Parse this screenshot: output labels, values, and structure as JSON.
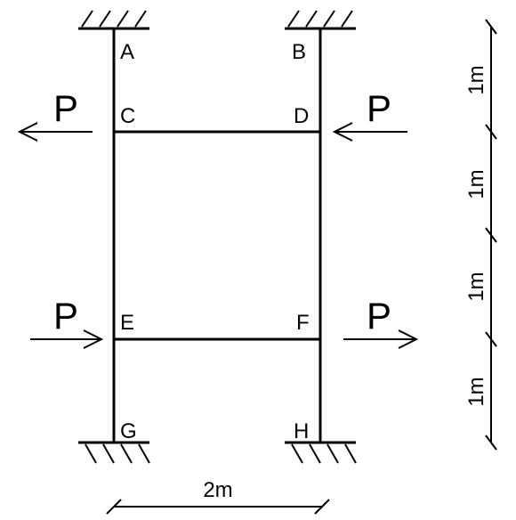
{
  "diagram": {
    "nodes": {
      "A": "A",
      "B": "B",
      "C": "C",
      "D": "D",
      "E": "E",
      "F": "F",
      "G": "G",
      "H": "H"
    },
    "loads": {
      "C": "P",
      "D": "P",
      "E": "P",
      "F": "P"
    },
    "dimensions": {
      "width": "2m",
      "h1": "1m",
      "h2": "1m",
      "h3": "1m",
      "h4": "1m"
    }
  }
}
